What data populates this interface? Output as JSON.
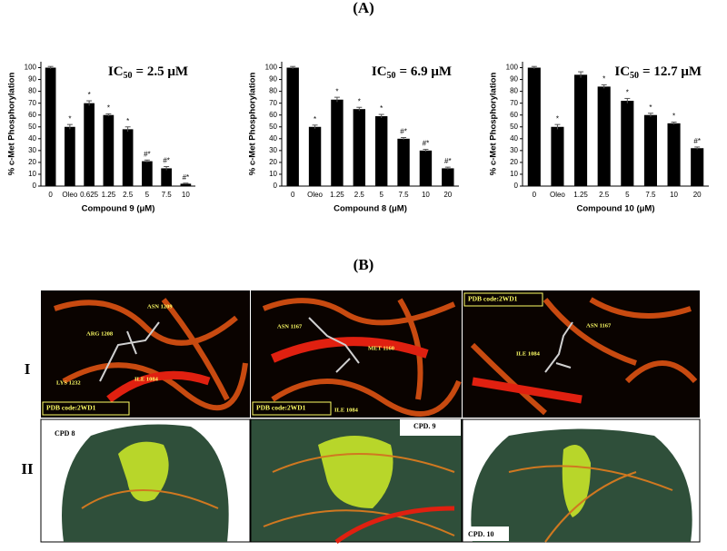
{
  "chart_data": [
    {
      "type": "bar",
      "y_label": "% c-Met Phosphorylation",
      "x_label": "Compound 9 (μM)",
      "ic50": {
        "main": "IC",
        "sub": "50",
        "rest": "= 2.5 μM"
      },
      "categories": [
        "0",
        "Oleo",
        "0.625",
        "1.25",
        "2.5",
        "5",
        "7.5",
        "10"
      ],
      "values": [
        100,
        50,
        70,
        60,
        48,
        21,
        15,
        2
      ],
      "errors": [
        1,
        2,
        2,
        1,
        2,
        1,
        1.5,
        0.5
      ],
      "significance": [
        null,
        "*",
        "*",
        "*",
        "*",
        "#*",
        "#*",
        "#*"
      ],
      "color": "#000000",
      "ylim": [
        0,
        105
      ],
      "yticks": [
        0,
        10,
        20,
        30,
        40,
        50,
        60,
        70,
        80,
        90,
        100
      ]
    },
    {
      "type": "bar",
      "y_label": "% c-Met Phosphorylation",
      "x_label": "Compound 8 (μM)",
      "ic50": {
        "main": "IC",
        "sub": "50",
        "rest": "= 6.9 μM"
      },
      "categories": [
        "0",
        "Oleo",
        "1.25",
        "2.5",
        "5",
        "7.5",
        "10",
        "20"
      ],
      "values": [
        100,
        50,
        73,
        65,
        59,
        40,
        30,
        15
      ],
      "errors": [
        1,
        1.5,
        2,
        1.5,
        1.5,
        1,
        1,
        1
      ],
      "significance": [
        null,
        "*",
        "*",
        "*",
        "*",
        "#*",
        "#*",
        "#*"
      ],
      "color": "#000000",
      "ylim": [
        0,
        105
      ],
      "yticks": [
        0,
        10,
        20,
        30,
        40,
        50,
        60,
        70,
        80,
        90,
        100
      ]
    },
    {
      "type": "bar",
      "y_label": "% c-Met Phosphorylation",
      "x_label": "Compound 10 (μM)",
      "ic50": {
        "main": "IC",
        "sub": "50",
        "rest": "= 12.7 μM"
      },
      "categories": [
        "0",
        "Oleo",
        "1.25",
        "2.5",
        "5",
        "7.5",
        "10",
        "20"
      ],
      "values": [
        100,
        50,
        94,
        84,
        72,
        60,
        53,
        32
      ],
      "errors": [
        1,
        2,
        2.5,
        1.5,
        2,
        1.5,
        1,
        1
      ],
      "significance": [
        null,
        "*",
        null,
        "*",
        "*",
        "*",
        "*",
        "#*"
      ],
      "color": "#000000",
      "ylim": [
        0,
        105
      ],
      "yticks": [
        0,
        10,
        20,
        30,
        40,
        50,
        60,
        70,
        80,
        90,
        100
      ]
    }
  ],
  "panel_a": {
    "title": "(A)"
  },
  "panel_b": {
    "title": "(B)",
    "row_labels": [
      "I",
      "II"
    ],
    "docking": [
      [
        "ARG 1208",
        "ASN 1209",
        "LYS 1232",
        "ILE 1084",
        "PDB code:2WD1"
      ],
      [
        "ASN 1167",
        "MET 1160",
        "ILE 1084",
        "PDB code:2WD1"
      ],
      [
        "PDB code:2WD1",
        "ILE 1084",
        "ASN 1167"
      ]
    ],
    "surface": [
      "CPD 8",
      "CPD. 9",
      "CPD. 10"
    ]
  }
}
